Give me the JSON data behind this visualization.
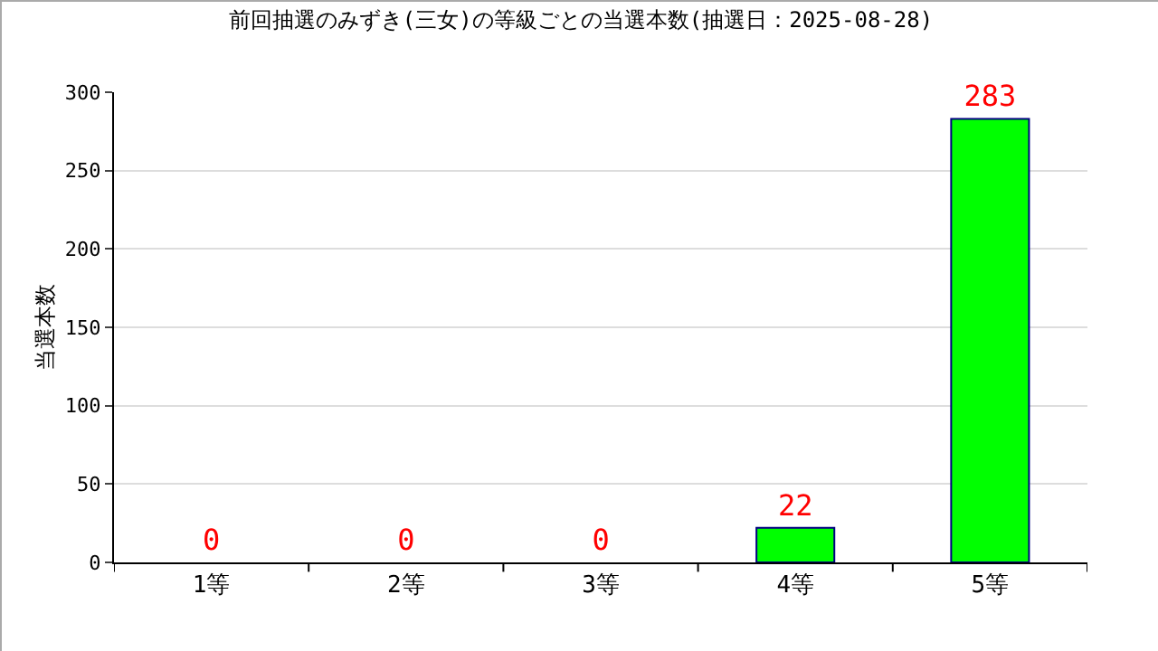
{
  "chart_data": {
    "type": "bar",
    "title": "前回抽選のみずき(三女)の等級ごとの当選本数(抽選日：2025-08-28)",
    "ylabel": "当選本数",
    "categories": [
      "1等",
      "2等",
      "3等",
      "4等",
      "5等"
    ],
    "values": [
      0,
      0,
      0,
      22,
      283
    ],
    "color": "#00ff00",
    "ylim": [
      0,
      300
    ],
    "yticks": [
      0,
      50,
      100,
      150,
      200,
      250,
      300
    ],
    "grid": "y",
    "data_labels": true
  }
}
